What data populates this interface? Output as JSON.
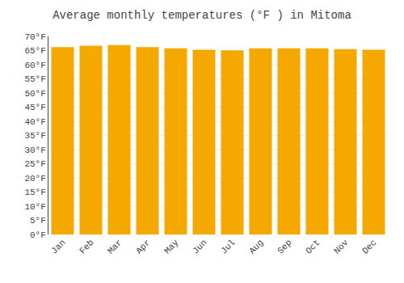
{
  "chart_data": {
    "type": "bar",
    "title": "Average monthly temperatures (°F ) in Mitoma",
    "categories": [
      "Jan",
      "Feb",
      "Mar",
      "Apr",
      "May",
      "Jun",
      "Jul",
      "Aug",
      "Sep",
      "Oct",
      "Nov",
      "Dec"
    ],
    "values": [
      66.2,
      66.7,
      66.9,
      66.2,
      65.8,
      65.3,
      65.1,
      65.8,
      65.8,
      65.8,
      65.5,
      65.3
    ],
    "color": "#F5A800",
    "ylim": [
      0,
      70
    ],
    "yticks": [
      {
        "value": 0,
        "label": "0°F"
      },
      {
        "value": 5,
        "label": "5°F"
      },
      {
        "value": 10,
        "label": "10°F"
      },
      {
        "value": 15,
        "label": "15°F"
      },
      {
        "value": 20,
        "label": "20°F"
      },
      {
        "value": 25,
        "label": "25°F"
      },
      {
        "value": 30,
        "label": "30°F"
      },
      {
        "value": 35,
        "label": "35°F"
      },
      {
        "value": 40,
        "label": "40°F"
      },
      {
        "value": 45,
        "label": "45°F"
      },
      {
        "value": 50,
        "label": "50°F"
      },
      {
        "value": 55,
        "label": "55°F"
      },
      {
        "value": 60,
        "label": "60°F"
      },
      {
        "value": 65,
        "label": "65°F"
      },
      {
        "value": 70,
        "label": "70°F"
      }
    ],
    "grid": true
  }
}
